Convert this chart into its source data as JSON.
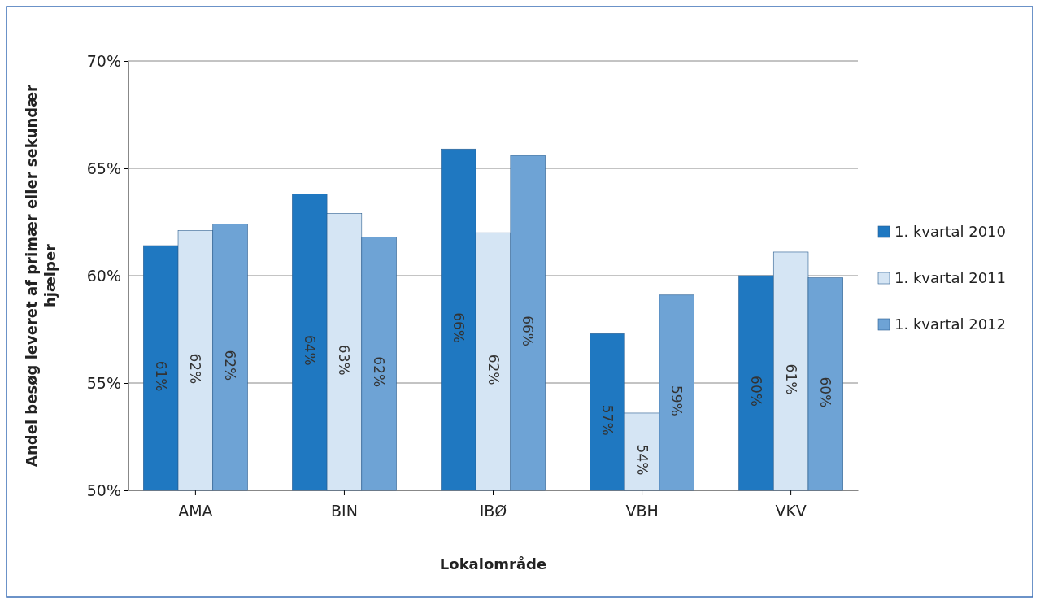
{
  "chart_data": {
    "type": "bar",
    "xlabel": "Lokalområde",
    "ylabel": "Andel besøg leveret af primær eller sekundær hjælper",
    "categories": [
      "AMA",
      "BIN",
      "IBØ",
      "VBH",
      "VKV"
    ],
    "series": [
      {
        "name": "1. kvartal 2010",
        "color": "#1f78c1",
        "values": [
          61.4,
          63.8,
          65.9,
          57.3,
          60.0
        ],
        "value_labels": [
          "61%",
          "64%",
          "66%",
          "57%",
          "60%"
        ]
      },
      {
        "name": "1. kvartal 2011",
        "color": "#d5e5f4",
        "values": [
          62.1,
          62.9,
          62.0,
          53.6,
          61.1
        ],
        "value_labels": [
          "62%",
          "63%",
          "62%",
          "54%",
          "61%"
        ]
      },
      {
        "name": "1. kvartal 2012",
        "color": "#6ea3d5",
        "values": [
          62.4,
          61.8,
          65.6,
          59.1,
          59.9
        ],
        "value_labels": [
          "62%",
          "62%",
          "66%",
          "59%",
          "60%"
        ]
      }
    ],
    "ylim": [
      50,
      70
    ],
    "yticks": [
      {
        "value": 50,
        "label": "50%"
      },
      {
        "value": 55,
        "label": "55%"
      },
      {
        "value": 60,
        "label": "60%"
      },
      {
        "value": 65,
        "label": "65%"
      },
      {
        "value": 70,
        "label": "70%"
      }
    ],
    "grid": "y",
    "legend": "right"
  }
}
